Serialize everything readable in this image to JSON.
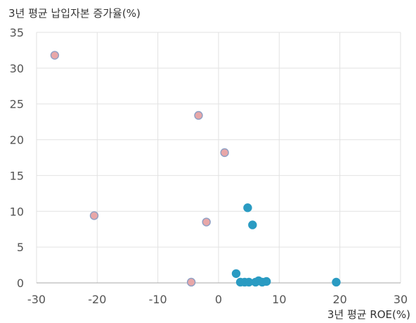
{
  "chart_data": {
    "type": "scatter",
    "title": "",
    "ylabel": "3년 평균 납입자본 증가율(%)",
    "xlabel": "3년 평균 ROE(%)",
    "xlim": [
      -30,
      30
    ],
    "ylim": [
      0,
      35
    ],
    "x_ticks": [
      -30,
      -20,
      -10,
      0,
      10,
      20,
      30
    ],
    "y_ticks": [
      0,
      5,
      10,
      15,
      20,
      25,
      30,
      35
    ],
    "grid": "vertical-and-horizontal",
    "series": [
      {
        "color": "#E8A7A8",
        "stroke": "#8E9FC4",
        "points": [
          {
            "x": -27.0,
            "y": 31.8
          },
          {
            "x": -20.5,
            "y": 9.4
          },
          {
            "x": -3.3,
            "y": 23.4
          },
          {
            "x": -2.0,
            "y": 8.5
          },
          {
            "x": 1.0,
            "y": 18.2
          },
          {
            "x": -4.5,
            "y": 0.1
          }
        ]
      },
      {
        "color": "#2A9BC2",
        "stroke": "#2A9BC2",
        "points": [
          {
            "x": 4.8,
            "y": 10.5
          },
          {
            "x": 5.6,
            "y": 8.1
          },
          {
            "x": 2.9,
            "y": 1.3
          },
          {
            "x": 3.6,
            "y": 0.1
          },
          {
            "x": 4.3,
            "y": 0.1
          },
          {
            "x": 5.0,
            "y": 0.1
          },
          {
            "x": 6.1,
            "y": 0.1
          },
          {
            "x": 6.6,
            "y": 0.3
          },
          {
            "x": 7.2,
            "y": 0.1
          },
          {
            "x": 7.9,
            "y": 0.2
          },
          {
            "x": 19.4,
            "y": 0.1
          }
        ]
      }
    ]
  }
}
